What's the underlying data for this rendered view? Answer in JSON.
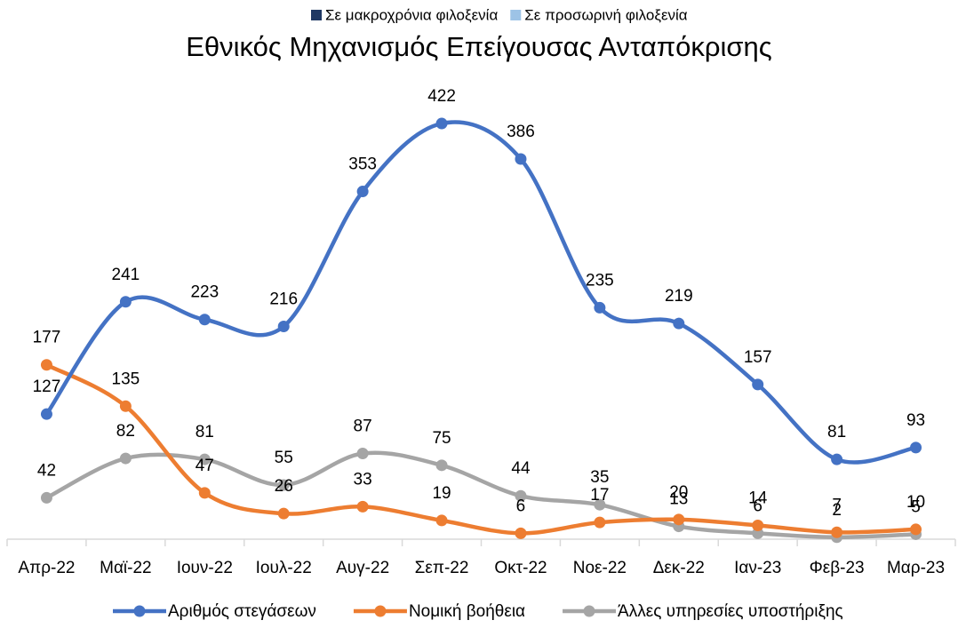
{
  "chart_data": {
    "type": "line",
    "title": "Εθνικός Μηχανισμός Επείγουσας Ανταπόκρισης",
    "extra_legend": [
      {
        "name": "Σε μακροχρόνια φιλοξενία",
        "color": "#1f3864"
      },
      {
        "name": "Σε προσωρινή φιλοξενία",
        "color": "#9dc3e6"
      }
    ],
    "categories": [
      "Απρ-22",
      "Μαϊ-22",
      "Ιουν-22",
      "Ιουλ-22",
      "Αυγ-22",
      "Σεπ-22",
      "Οκτ-22",
      "Νοε-22",
      "Δεκ-22",
      "Ιαν-23",
      "Φεβ-23",
      "Μαρ-23"
    ],
    "series": [
      {
        "name": "Αριθμός στεγάσεων",
        "color": "#4472c4",
        "values": [
          127,
          241,
          223,
          216,
          353,
          422,
          386,
          235,
          219,
          157,
          81,
          93
        ]
      },
      {
        "name": "Νομική βοήθεια",
        "color": "#ed7d31",
        "values": [
          177,
          135,
          47,
          26,
          33,
          19,
          6,
          17,
          20,
          14,
          7,
          10
        ]
      },
      {
        "name": "Άλλες υπηρεσίες υποστήριξης",
        "color": "#a5a5a5",
        "values": [
          42,
          82,
          81,
          55,
          87,
          75,
          44,
          35,
          13,
          6,
          2,
          5
        ]
      }
    ],
    "ylim": [
      0,
      450
    ]
  }
}
